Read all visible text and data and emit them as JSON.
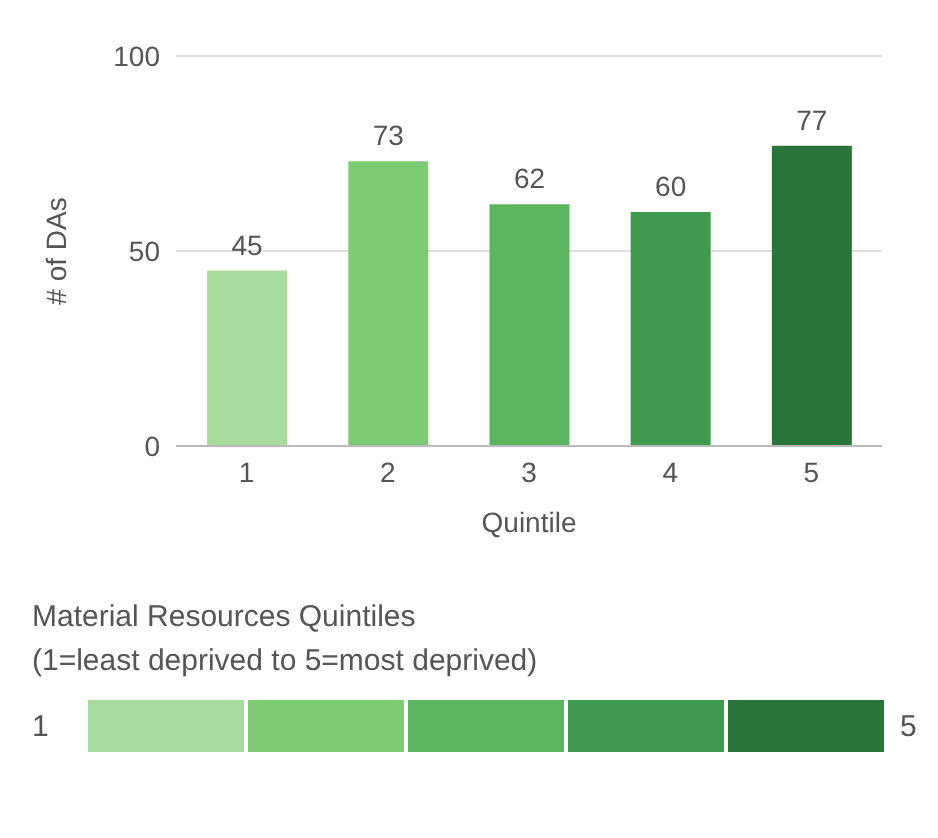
{
  "chart_data": {
    "type": "bar",
    "xlabel": "Quintile",
    "ylabel": "# of DAs",
    "legend_title": "Material Resources Quintiles\n(1=least deprived to 5=most deprived)",
    "categories": [
      "1",
      "2",
      "3",
      "4",
      "5"
    ],
    "values": [
      45,
      73,
      62,
      60,
      77
    ],
    "colors": [
      "#a8dc9c",
      "#7dcc74",
      "#5cb660",
      "#3f9a4e",
      "#2a753c"
    ],
    "ylim": [
      0,
      100
    ],
    "yticks": [
      0,
      50,
      100
    ],
    "grid": "y",
    "data_labels": true
  }
}
